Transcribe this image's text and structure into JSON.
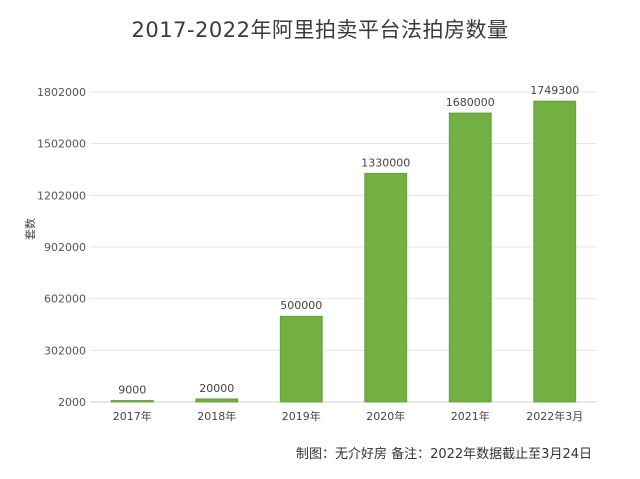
{
  "chart_data": {
    "type": "bar",
    "title": "2017-2022年阿里拍卖平台法拍房数量",
    "xlabel": "",
    "ylabel": "套数",
    "categories": [
      "2017年",
      "2018年",
      "2019年",
      "2020年",
      "2021年",
      "2022年3月"
    ],
    "values": [
      9000,
      20000,
      500000,
      1330000,
      1680000,
      1749300
    ],
    "data_labels": [
      "9000",
      "20000",
      "500000",
      "1330000",
      "1680000",
      "1749300"
    ],
    "yticks": [
      2000,
      302000,
      602000,
      902000,
      1202000,
      1502000,
      1802000
    ],
    "ytick_labels": [
      "2000",
      "302000",
      "602000",
      "902000",
      "1202000",
      "1502000",
      "1802000"
    ],
    "ylim": [
      2000,
      1802000
    ],
    "grid": true,
    "legend": "none",
    "colors": {
      "bar": "#72b043",
      "bar_edge": "#5d9a35",
      "grid": "#e6e6e6"
    }
  },
  "footer": {
    "note": "制图：无介好房  备注：2022年数据截止至3月24日"
  }
}
